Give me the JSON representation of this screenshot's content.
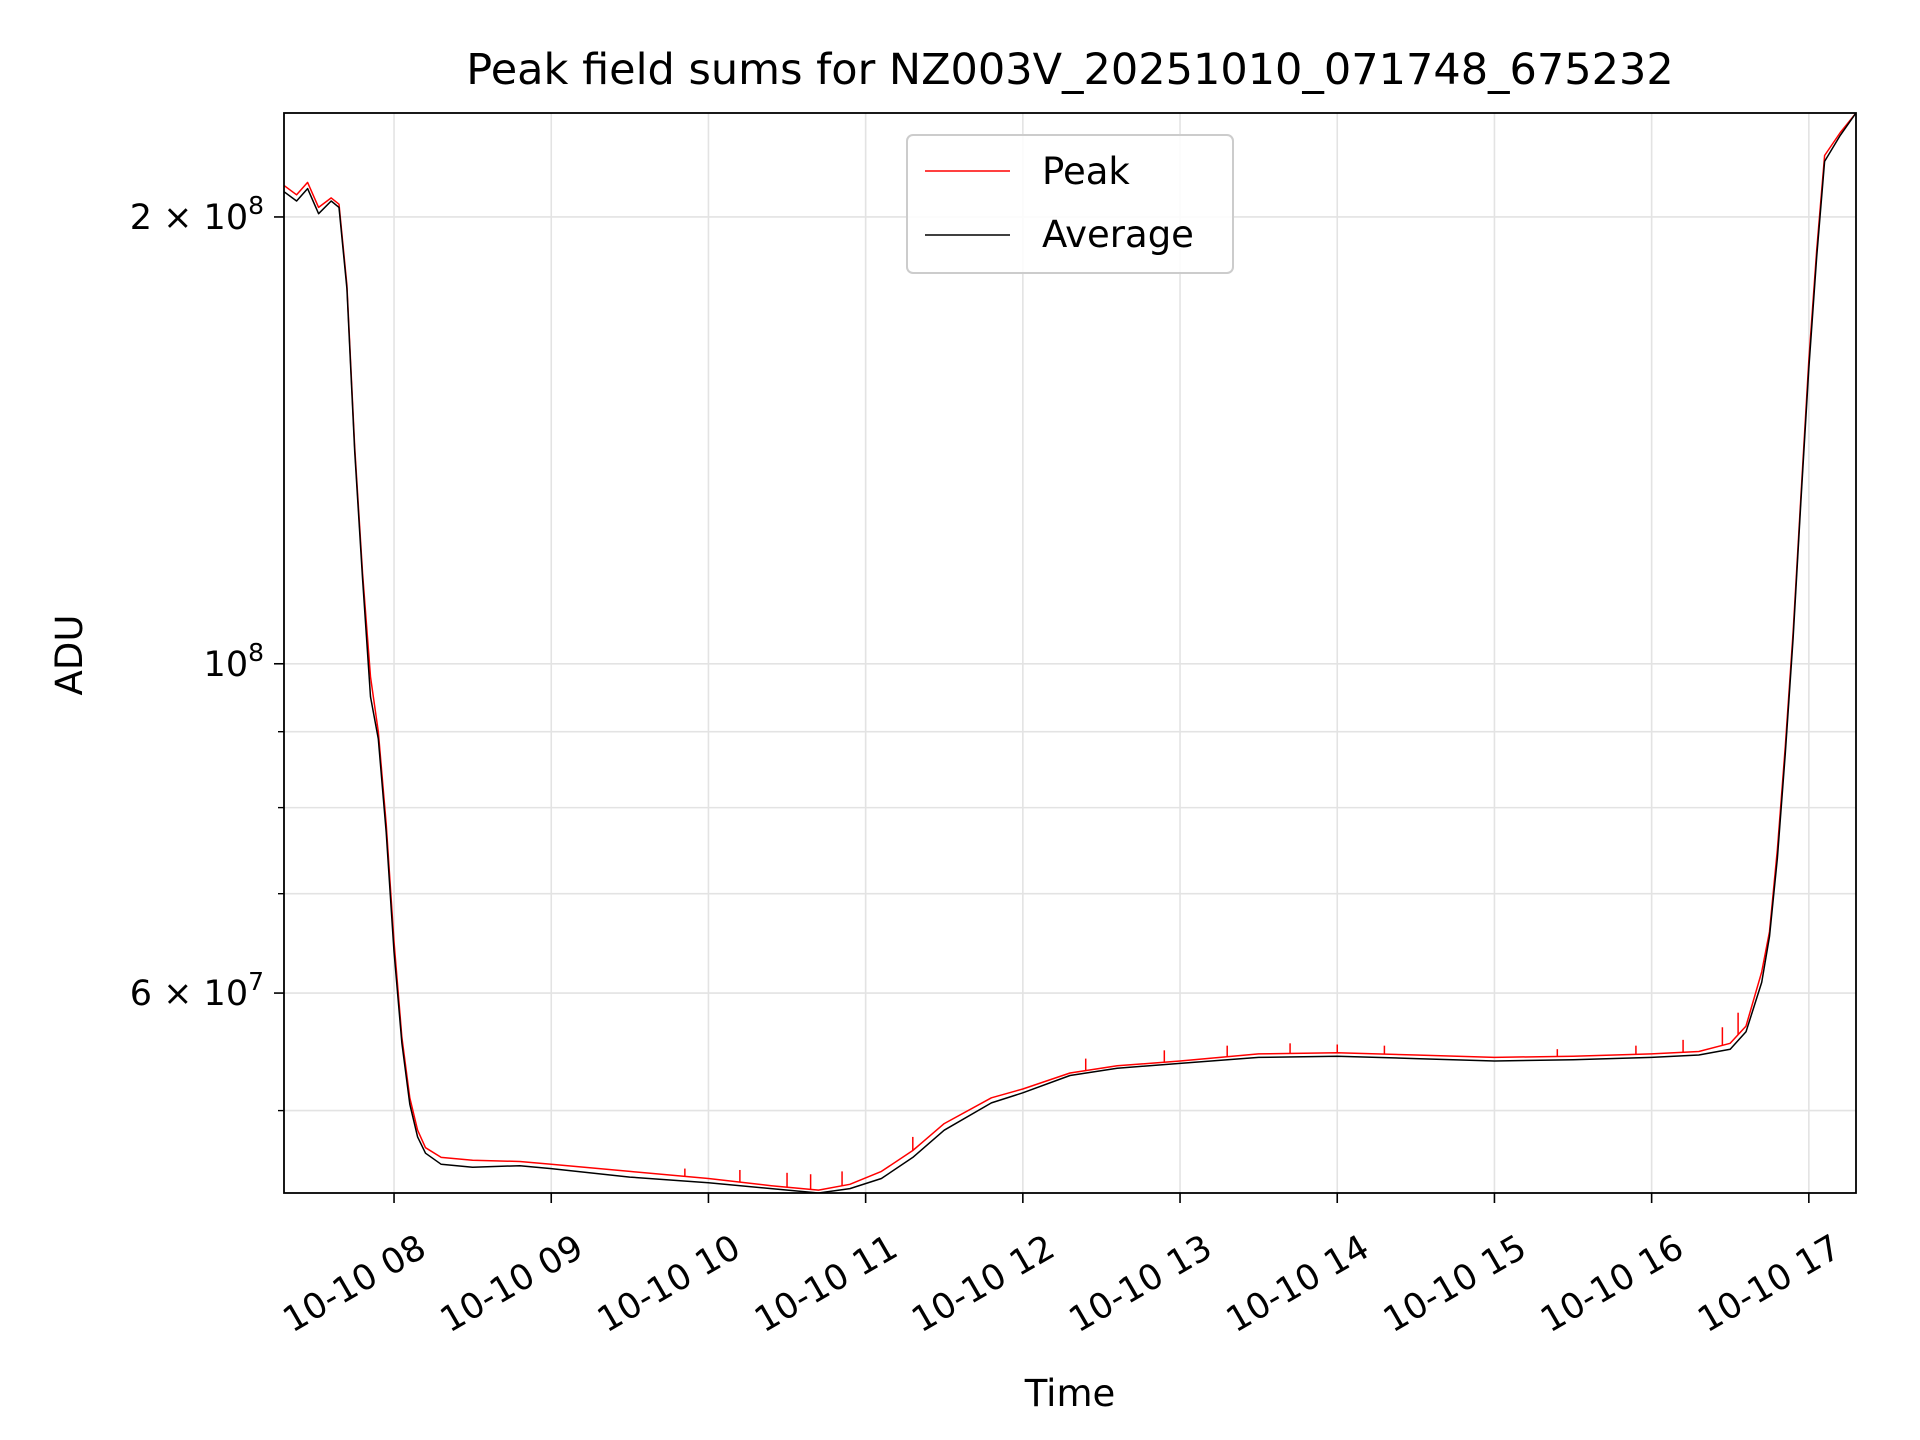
{
  "chart_data": {
    "type": "line",
    "title": "Peak field sums for NZ003V_20251010_071748_675232",
    "xlabel": "Time",
    "ylabel": "ADU",
    "yscale": "log",
    "xlim": [
      7.3,
      17.3
    ],
    "ylim": [
      44000000,
      235000000
    ],
    "x_ticks": [
      {
        "value": 8,
        "label": "10-10 08"
      },
      {
        "value": 9,
        "label": "10-10 09"
      },
      {
        "value": 10,
        "label": "10-10 10"
      },
      {
        "value": 11,
        "label": "10-10 11"
      },
      {
        "value": 12,
        "label": "10-10 12"
      },
      {
        "value": 13,
        "label": "10-10 13"
      },
      {
        "value": 14,
        "label": "10-10 14"
      },
      {
        "value": 15,
        "label": "10-10 15"
      },
      {
        "value": 16,
        "label": "10-10 16"
      },
      {
        "value": 17,
        "label": "10-10 17"
      }
    ],
    "y_major_ticks": [
      {
        "value": 200000000,
        "mantissa": "2",
        "times": "×",
        "base": "10",
        "exp": "8"
      },
      {
        "value": 100000000,
        "mantissa": "",
        "times": "",
        "base": "10",
        "exp": "8"
      },
      {
        "value": 60000000,
        "mantissa": "6",
        "times": "×",
        "base": "10",
        "exp": "7"
      }
    ],
    "y_minor_ticks": [
      50000000,
      70000000,
      80000000,
      90000000
    ],
    "grid": true,
    "legend_position": "top-center",
    "series": [
      {
        "name": "Peak",
        "color": "#ff0000",
        "x": [
          7.3,
          7.38,
          7.45,
          7.52,
          7.6,
          7.65,
          7.7,
          7.75,
          7.8,
          7.85,
          7.9,
          7.95,
          8.0,
          8.05,
          8.1,
          8.15,
          8.2,
          8.3,
          8.5,
          8.8,
          9.0,
          9.5,
          10.0,
          10.4,
          10.7,
          10.9,
          11.1,
          11.3,
          11.5,
          11.8,
          12.0,
          12.3,
          12.6,
          13.0,
          13.5,
          14.0,
          14.5,
          15.0,
          15.5,
          16.0,
          16.3,
          16.5,
          16.6,
          16.7,
          16.75,
          16.8,
          16.85,
          16.9,
          16.95,
          17.0,
          17.05,
          17.1,
          17.2,
          17.3
        ],
        "y": [
          210000000,
          207000000,
          211000000,
          203000000,
          206000000,
          204000000,
          180000000,
          140000000,
          115000000,
          98000000,
          90000000,
          78000000,
          65000000,
          56000000,
          51000000,
          48500000,
          47200000,
          46500000,
          46300000,
          46200000,
          46000000,
          45500000,
          45000000,
          44500000,
          44200000,
          44600000,
          45500000,
          47000000,
          49000000,
          51000000,
          51700000,
          53000000,
          53600000,
          54000000,
          54600000,
          54700000,
          54500000,
          54300000,
          54400000,
          54600000,
          54800000,
          55500000,
          57000000,
          62000000,
          66000000,
          75000000,
          88000000,
          105000000,
          130000000,
          160000000,
          190000000,
          220000000,
          228000000,
          235000000
        ],
        "spikes": [
          {
            "x": 9.85,
            "y": 45700000
          },
          {
            "x": 10.2,
            "y": 45600000
          },
          {
            "x": 10.5,
            "y": 45400000
          },
          {
            "x": 10.65,
            "y": 45300000
          },
          {
            "x": 10.85,
            "y": 45500000
          },
          {
            "x": 11.3,
            "y": 48000000
          },
          {
            "x": 12.4,
            "y": 54200000
          },
          {
            "x": 12.9,
            "y": 54900000
          },
          {
            "x": 13.3,
            "y": 55300000
          },
          {
            "x": 13.7,
            "y": 55500000
          },
          {
            "x": 14.0,
            "y": 55400000
          },
          {
            "x": 14.3,
            "y": 55300000
          },
          {
            "x": 15.4,
            "y": 55000000
          },
          {
            "x": 15.9,
            "y": 55300000
          },
          {
            "x": 16.2,
            "y": 55800000
          },
          {
            "x": 16.45,
            "y": 56900000
          },
          {
            "x": 16.55,
            "y": 58200000
          }
        ]
      },
      {
        "name": "Average",
        "color": "#000000",
        "x": [
          7.3,
          7.38,
          7.45,
          7.52,
          7.6,
          7.65,
          7.7,
          7.75,
          7.8,
          7.85,
          7.9,
          7.95,
          8.0,
          8.05,
          8.1,
          8.15,
          8.2,
          8.3,
          8.5,
          8.8,
          9.0,
          9.5,
          10.0,
          10.4,
          10.7,
          10.9,
          11.1,
          11.3,
          11.5,
          11.8,
          12.0,
          12.3,
          12.6,
          13.0,
          13.5,
          14.0,
          14.5,
          15.0,
          15.5,
          16.0,
          16.3,
          16.5,
          16.6,
          16.7,
          16.75,
          16.8,
          16.85,
          16.9,
          16.95,
          17.0,
          17.05,
          17.1,
          17.2,
          17.3
        ],
        "y": [
          208000000,
          205000000,
          209000000,
          201000000,
          205000000,
          203000000,
          179000000,
          139000000,
          114000000,
          95000000,
          89000000,
          77000000,
          64000000,
          55500000,
          50500000,
          48000000,
          46800000,
          46000000,
          45800000,
          45900000,
          45700000,
          45100000,
          44700000,
          44300000,
          44000000,
          44300000,
          45000000,
          46500000,
          48500000,
          50600000,
          51400000,
          52800000,
          53400000,
          53800000,
          54300000,
          54400000,
          54200000,
          54000000,
          54100000,
          54300000,
          54500000,
          55000000,
          56500000,
          61000000,
          65500000,
          74000000,
          87000000,
          104000000,
          129000000,
          158000000,
          188000000,
          218000000,
          227000000,
          235000000
        ]
      }
    ]
  }
}
